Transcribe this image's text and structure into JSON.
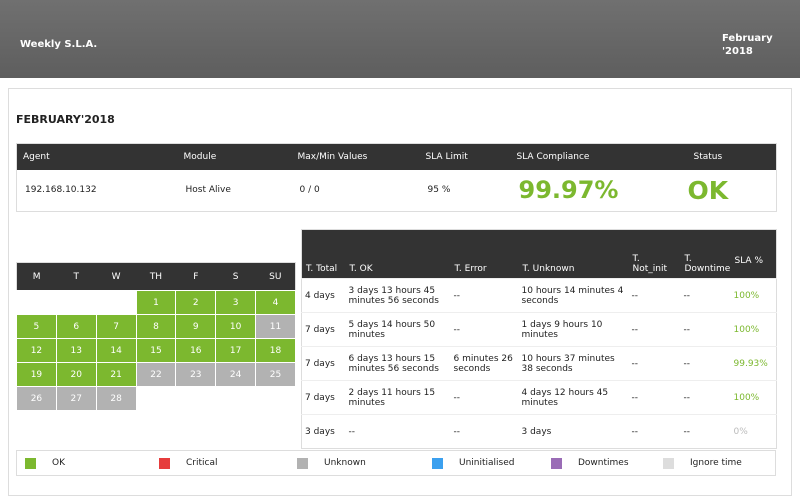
{
  "header": {
    "title": "Weekly S.L.A.",
    "period": "February '2018"
  },
  "report": {
    "title": "FEBRUARY'2018",
    "summary": {
      "columns": [
        "Agent",
        "Module",
        "Max/Min Values",
        "SLA Limit",
        "SLA Compliance",
        "Status"
      ],
      "row": [
        "192.168.10.132",
        "Host Alive",
        "0 / 0",
        "95 %",
        "99.97%",
        "OK"
      ],
      "highlight_color": "#7cb82f"
    }
  },
  "calendar": {
    "weekdays": [
      "M",
      "T",
      "W",
      "TH",
      "F",
      "S",
      "SU"
    ],
    "leading_blanks": 3,
    "days": [
      1,
      2,
      3,
      4,
      5,
      6,
      7,
      8,
      9,
      10,
      11,
      12,
      13,
      14,
      15,
      16,
      17,
      18,
      19,
      20,
      21,
      22,
      23,
      24,
      25,
      26,
      27,
      28
    ],
    "status": [
      "ok",
      "ok",
      "ok",
      "ok",
      "ok",
      "ok",
      "ok",
      "ok",
      "ok",
      "ok",
      "unknown",
      "ok",
      "ok",
      "ok",
      "ok",
      "ok",
      "ok",
      "ok",
      "ok",
      "ok",
      "ok",
      "unknown",
      "unknown",
      "unknown",
      "unknown",
      "unknown",
      "unknown",
      "unknown"
    ]
  },
  "weekly_table": {
    "columns": [
      "T. Total",
      "T. OK",
      "T. Error",
      "T. Unknown",
      "T. Not_init",
      "T. Downtime",
      "SLA %"
    ],
    "rows": [
      [
        "4 days",
        "3 days 13 hours 45 minutes 56 seconds",
        "--",
        "10 hours 14 minutes 4 seconds",
        "--",
        "--",
        "100%"
      ],
      [
        "7 days",
        "5 days 14 hours 50 minutes",
        "--",
        "1 days 9 hours 10 minutes",
        "--",
        "--",
        "100%"
      ],
      [
        "7 days",
        "6 days 13 hours 15 minutes 56 seconds",
        "6 minutes 26 seconds",
        "10 hours 37 minutes 38 seconds",
        "--",
        "--",
        "99.93%"
      ],
      [
        "7 days",
        "2 days 11 hours 15 minutes",
        "--",
        "4 days 12 hours 45 minutes",
        "--",
        "--",
        "100%"
      ],
      [
        "3 days",
        "--",
        "--",
        "3 days",
        "--",
        "--",
        "0%"
      ]
    ],
    "sla_colors": [
      "#7cb82f",
      "#7cb82f",
      "#7cb82f",
      "#7cb82f",
      "#bbbbbb"
    ]
  },
  "legend": [
    {
      "label": "OK",
      "key": "ok",
      "color": "#7cb82f"
    },
    {
      "label": "Critical",
      "key": "critical",
      "color": "#e63c3c"
    },
    {
      "label": "Unknown",
      "key": "unknown",
      "color": "#b2b2b2"
    },
    {
      "label": "Uninitialised",
      "key": "uninit",
      "color": "#3ba0ef"
    },
    {
      "label": "Downtimes",
      "key": "downtime",
      "color": "#9a6cb6"
    },
    {
      "label": "Ignore time",
      "key": "ignore",
      "color": "#dddddd"
    }
  ]
}
